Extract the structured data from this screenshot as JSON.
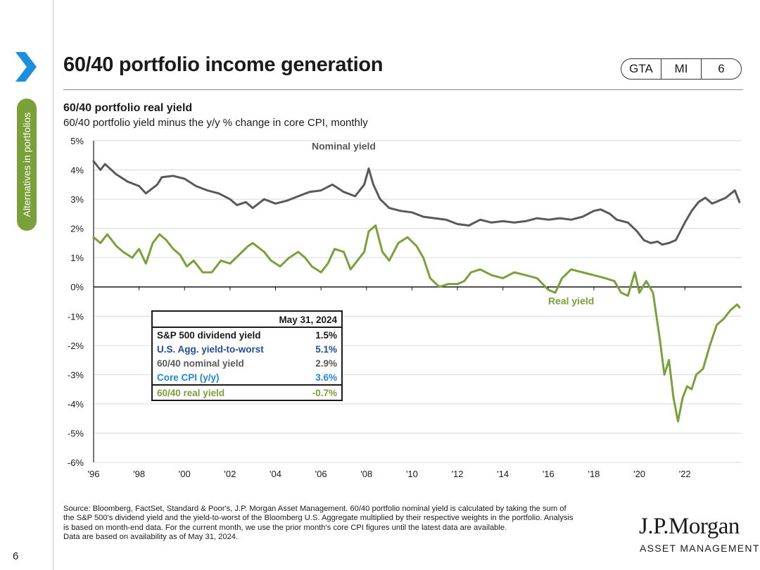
{
  "sidebar": {
    "section_label": "Alternatives in portfolios",
    "page_number": "6"
  },
  "header": {
    "title": "60/40 portfolio income generation",
    "tags": [
      "GTA",
      "MI",
      "6"
    ]
  },
  "chart": {
    "title": "60/40 portfolio real yield",
    "subtitle": "60/40 portfolio yield minus the y/y % change in core CPI, monthly"
  },
  "table": {
    "date": "May 31, 2024",
    "rows": [
      {
        "label": "S&P 500 dividend yield",
        "value": "1.5%"
      },
      {
        "label": "U.S. Agg. yield-to-worst",
        "value": "5.1%"
      },
      {
        "label": "60/40 nominal yield",
        "value": "2.9%"
      },
      {
        "label": "Core CPI (y/y)",
        "value": "3.6%"
      },
      {
        "label": "60/40 real yield",
        "value": "-0.7%"
      }
    ]
  },
  "colors": {
    "nominal": "#595959",
    "real": "#7aa03a",
    "agg": "#1f4e9a",
    "cpi": "#1e88d8",
    "accent_blue": "#1a8fe0"
  },
  "footnote": {
    "lines": [
      "Source: Bloomberg, FactSet, Standard & Poor's, J.P. Morgan Asset Management. 60/40 portfolio nominal yield is calculated by taking the sum of",
      "the S&P 500's dividend yield and the yield-to-worst of the Bloomberg U.S. Aggregate multiplied by their respective weights in the portfolio. Analysis",
      "is based on month-end data. For the current month, we use the prior month's core CPI figures until the latest data are available.",
      "Data are based on availability as of May 31, 2024."
    ]
  },
  "logo": {
    "line1": "J.P.Morgan",
    "line2": "ASSET MANAGEMENT"
  },
  "chart_data": {
    "type": "line",
    "title": "60/40 portfolio real yield",
    "subtitle": "60/40 portfolio yield minus the y/y % change in core CPI, monthly",
    "xlabel": "",
    "ylabel": "",
    "xlim": [
      1996,
      2024.5
    ],
    "ylim": [
      -6,
      5
    ],
    "yticks": [
      5,
      4,
      3,
      2,
      1,
      0,
      -1,
      -2,
      -3,
      -4,
      -5,
      -6
    ],
    "ytick_labels": [
      "5%",
      "4%",
      "3%",
      "2%",
      "1%",
      "0%",
      "-1%",
      "-2%",
      "-3%",
      "-4%",
      "-5%",
      "-6%"
    ],
    "xticks": [
      1996,
      1998,
      2000,
      2002,
      2004,
      2006,
      2008,
      2010,
      2012,
      2014,
      2016,
      2018,
      2020,
      2022
    ],
    "xtick_labels": [
      "'96",
      "'98",
      "'00",
      "'02",
      "'04",
      "'06",
      "'08",
      "'10",
      "'12",
      "'14",
      "'16",
      "'18",
      "'20",
      "'22"
    ],
    "grid": true,
    "series": [
      {
        "name": "Nominal yield",
        "x": [
          1996.0,
          1996.3,
          1996.5,
          1997.0,
          1997.5,
          1998.0,
          1998.3,
          1998.8,
          1999.0,
          1999.5,
          2000.0,
          2000.5,
          2001.0,
          2001.5,
          2002.0,
          2002.3,
          2002.7,
          2003.0,
          2003.5,
          2004.0,
          2004.5,
          2005.0,
          2005.5,
          2006.0,
          2006.5,
          2007.0,
          2007.5,
          2007.9,
          2008.1,
          2008.3,
          2008.6,
          2009.0,
          2009.5,
          2010.0,
          2010.5,
          2011.0,
          2011.5,
          2012.0,
          2012.5,
          2013.0,
          2013.5,
          2014.0,
          2014.5,
          2015.0,
          2015.5,
          2016.0,
          2016.5,
          2017.0,
          2017.5,
          2018.0,
          2018.3,
          2018.7,
          2019.0,
          2019.5,
          2019.9,
          2020.2,
          2020.5,
          2020.8,
          2021.0,
          2021.3,
          2021.6,
          2022.0,
          2022.3,
          2022.6,
          2022.9,
          2023.2,
          2023.5,
          2023.8,
          2024.2,
          2024.4
        ],
        "values": [
          4.3,
          4.0,
          4.2,
          3.85,
          3.6,
          3.45,
          3.2,
          3.5,
          3.75,
          3.8,
          3.7,
          3.45,
          3.3,
          3.2,
          3.0,
          2.8,
          2.9,
          2.7,
          3.0,
          2.85,
          2.95,
          3.1,
          3.25,
          3.3,
          3.5,
          3.25,
          3.1,
          3.5,
          4.05,
          3.5,
          3.0,
          2.7,
          2.6,
          2.55,
          2.4,
          2.35,
          2.3,
          2.15,
          2.1,
          2.3,
          2.2,
          2.25,
          2.2,
          2.25,
          2.35,
          2.3,
          2.35,
          2.3,
          2.4,
          2.6,
          2.65,
          2.5,
          2.3,
          2.2,
          1.9,
          1.6,
          1.5,
          1.55,
          1.45,
          1.5,
          1.6,
          2.2,
          2.6,
          2.9,
          3.05,
          2.85,
          2.95,
          3.05,
          3.3,
          2.9
        ]
      },
      {
        "name": "Real yield",
        "x": [
          1996.0,
          1996.3,
          1996.6,
          1997.0,
          1997.3,
          1997.7,
          1998.0,
          1998.3,
          1998.6,
          1998.9,
          1999.2,
          1999.5,
          1999.8,
          2000.1,
          2000.4,
          2000.8,
          2001.2,
          2001.6,
          2002.0,
          2002.4,
          2002.8,
          2003.0,
          2003.5,
          2003.8,
          2004.2,
          2004.6,
          2005.0,
          2005.3,
          2005.6,
          2006.0,
          2006.3,
          2006.6,
          2007.0,
          2007.3,
          2007.6,
          2007.9,
          2008.1,
          2008.4,
          2008.7,
          2009.0,
          2009.4,
          2009.8,
          2010.2,
          2010.5,
          2010.8,
          2011.2,
          2011.6,
          2012.0,
          2012.3,
          2012.6,
          2013.0,
          2013.5,
          2014.0,
          2014.5,
          2015.0,
          2015.5,
          2016.0,
          2016.3,
          2016.6,
          2017.0,
          2017.5,
          2018.0,
          2018.5,
          2018.9,
          2019.2,
          2019.5,
          2019.8,
          2020.0,
          2020.3,
          2020.6,
          2020.9,
          2021.1,
          2021.3,
          2021.5,
          2021.7,
          2021.9,
          2022.1,
          2022.3,
          2022.5,
          2022.8,
          2023.1,
          2023.4,
          2023.7,
          2024.0,
          2024.3,
          2024.4
        ],
        "values": [
          1.7,
          1.5,
          1.8,
          1.4,
          1.2,
          1.0,
          1.3,
          0.8,
          1.5,
          1.8,
          1.6,
          1.3,
          1.1,
          0.7,
          0.9,
          0.5,
          0.5,
          0.9,
          0.8,
          1.1,
          1.4,
          1.5,
          1.2,
          0.9,
          0.7,
          1.0,
          1.2,
          1.0,
          0.7,
          0.5,
          0.8,
          1.3,
          1.2,
          0.6,
          0.9,
          1.2,
          1.9,
          2.1,
          1.2,
          0.9,
          1.5,
          1.7,
          1.4,
          1.0,
          0.3,
          0.0,
          0.1,
          0.1,
          0.2,
          0.5,
          0.6,
          0.4,
          0.3,
          0.5,
          0.4,
          0.3,
          -0.1,
          -0.2,
          0.3,
          0.6,
          0.5,
          0.4,
          0.3,
          0.2,
          -0.2,
          -0.3,
          0.5,
          -0.2,
          0.2,
          -0.2,
          -1.8,
          -3.0,
          -2.5,
          -3.8,
          -4.6,
          -3.8,
          -3.4,
          -3.5,
          -3.0,
          -2.8,
          -2.0,
          -1.3,
          -1.1,
          -0.8,
          -0.6,
          -0.7
        ]
      }
    ],
    "annotations": [
      {
        "text": "Nominal yield",
        "x": 2007.0,
        "y": 4.7
      },
      {
        "text": "Real yield",
        "x": 2017.0,
        "y": -0.6
      }
    ]
  }
}
